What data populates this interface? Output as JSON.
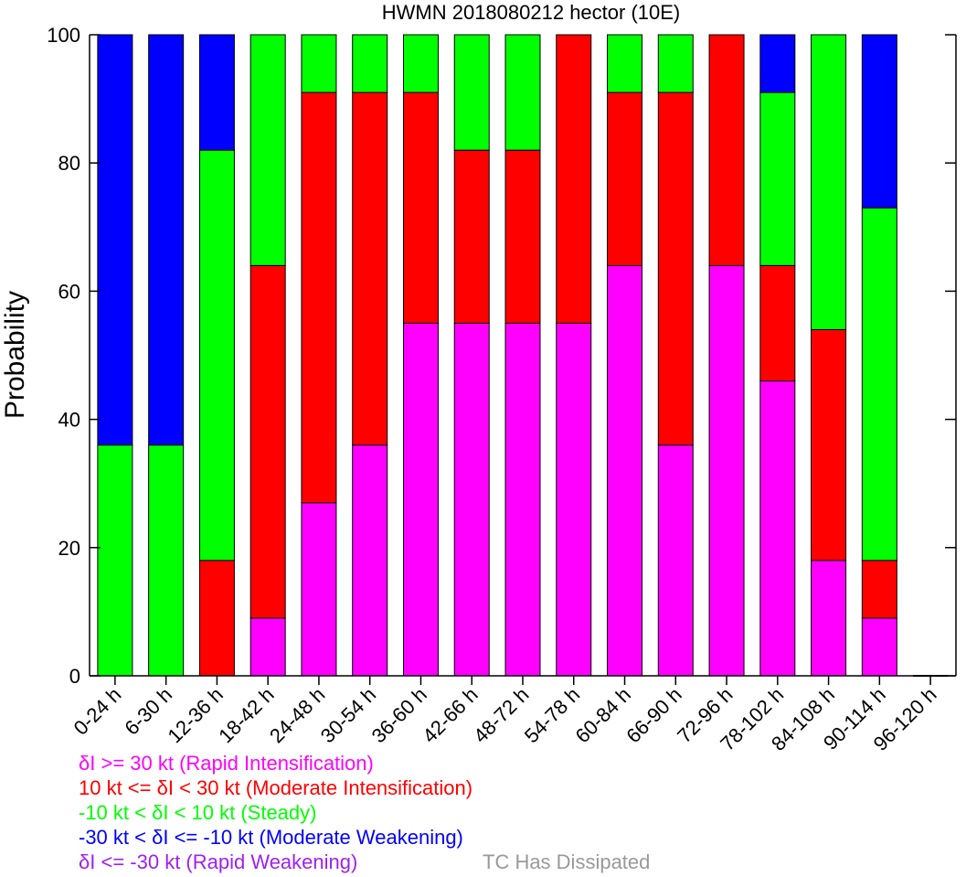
{
  "chart_data": {
    "type": "bar",
    "stacked": true,
    "title": "HWMN 2018080212 hector (10E)",
    "ylabel": "Probability",
    "xlabel": "",
    "ylim": [
      0,
      100
    ],
    "yticks": [
      0,
      20,
      40,
      60,
      80,
      100
    ],
    "categories": [
      "0-24 h",
      "6-30 h",
      "12-36 h",
      "18-42 h",
      "24-48 h",
      "30-54 h",
      "36-60 h",
      "42-66 h",
      "48-72 h",
      "54-78 h",
      "60-84 h",
      "66-90 h",
      "72-96 h",
      "78-102 h",
      "84-108 h",
      "90-114 h",
      "96-120 h"
    ],
    "series": [
      {
        "key": "ri",
        "color": "#ff00ff",
        "values": [
          0,
          0,
          0,
          9,
          27,
          36,
          55,
          55,
          55,
          55,
          64,
          36,
          64,
          46,
          18,
          9,
          0
        ]
      },
      {
        "key": "mi",
        "color": "#ff0000",
        "values": [
          0,
          0,
          18,
          55,
          64,
          55,
          36,
          27,
          27,
          45,
          27,
          55,
          36,
          18,
          36,
          9,
          0
        ]
      },
      {
        "key": "st",
        "color": "#00ff00",
        "values": [
          36,
          36,
          64,
          36,
          9,
          9,
          9,
          18,
          18,
          0,
          9,
          9,
          0,
          27,
          46,
          55,
          0
        ]
      },
      {
        "key": "mw",
        "color": "#0000ff",
        "values": [
          64,
          64,
          18,
          0,
          0,
          0,
          0,
          0,
          0,
          0,
          0,
          0,
          0,
          9,
          0,
          27,
          0
        ]
      },
      {
        "key": "rw",
        "color": "#a020f0",
        "values": [
          0,
          0,
          0,
          0,
          0,
          0,
          0,
          0,
          0,
          0,
          0,
          0,
          0,
          0,
          0,
          0,
          0
        ]
      }
    ],
    "legend": [
      {
        "text": "δI >= 30 kt (Rapid Intensification)",
        "color": "#ff00ff"
      },
      {
        "text": "10 kt <= δI < 30 kt (Moderate Intensification)",
        "color": "#ff0000"
      },
      {
        "text": "-10 kt < δI < 10 kt (Steady)",
        "color": "#00ff00"
      },
      {
        "text": "-30 kt < δI <= -10 kt (Moderate Weakening)",
        "color": "#0000ff"
      },
      {
        "text": "δI <= -30 kt (Rapid Weakening)",
        "color": "#a020f0"
      }
    ],
    "dissipated_note": {
      "text": "TC Has Dissipated",
      "color": "#999999"
    },
    "legend_position": "bottom-left",
    "grid": false
  }
}
